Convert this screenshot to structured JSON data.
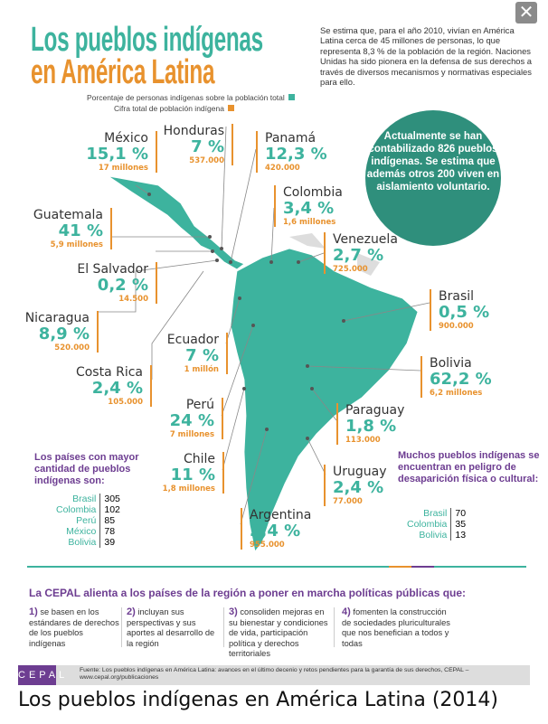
{
  "title": {
    "line1": "Los pueblos indígenas",
    "line2": "en América Latina"
  },
  "intro": "Se estima que, para el año 2010, vivían en América Latina cerca de 45 millones de personas, lo que representa 8,3 % de la población de la región. Naciones Unidas ha sido pionera en la defensa de sus derechos a través de diversos mecanismos y normativas especiales para ello.",
  "legend": {
    "pct": "Porcentaje de personas indígenas sobre la población total",
    "pop": "Cifra total de población indígena"
  },
  "colors": {
    "teal": "#3db39e",
    "orange": "#e8922e",
    "purple": "#6d3d91"
  },
  "bubble": "Actualmente se han contabilizado 826 pueblos indígenas. Se estima que además otros 200 viven en aislamiento voluntario.",
  "countries": {
    "mexico": {
      "name": "México",
      "pct": "15,1 %",
      "pop": "17 millones"
    },
    "honduras": {
      "name": "Honduras",
      "pct": "7 %",
      "pop": "537.000"
    },
    "panama": {
      "name": "Panamá",
      "pct": "12,3 %",
      "pop": "420.000"
    },
    "colombia": {
      "name": "Colombia",
      "pct": "3,4 %",
      "pop": "1,6 millones"
    },
    "venezuela": {
      "name": "Venezuela",
      "pct": "2,7 %",
      "pop": "725.000"
    },
    "guatemala": {
      "name": "Guatemala",
      "pct": "41 %",
      "pop": "5,9 millones"
    },
    "elsalvador": {
      "name": "El Salvador",
      "pct": "0,2 %",
      "pop": "14.500"
    },
    "nicaragua": {
      "name": "Nicaragua",
      "pct": "8,9 %",
      "pop": "520.000"
    },
    "ecuador": {
      "name": "Ecuador",
      "pct": "7 %",
      "pop": "1 millón"
    },
    "costarica": {
      "name": "Costa Rica",
      "pct": "2,4 %",
      "pop": "105.000"
    },
    "peru": {
      "name": "Perú",
      "pct": "24 %",
      "pop": "7 millones"
    },
    "chile": {
      "name": "Chile",
      "pct": "11 %",
      "pop": "1,8 millones"
    },
    "argentina": {
      "name": "Argentina",
      "pct": "2,4 %",
      "pop": "955.000"
    },
    "uruguay": {
      "name": "Uruguay",
      "pct": "2,4 %",
      "pop": "77.000"
    },
    "paraguay": {
      "name": "Paraguay",
      "pct": "1,8 %",
      "pop": "113.000"
    },
    "bolivia": {
      "name": "Bolivia",
      "pct": "62,2 %",
      "pop": "6,2 millones"
    },
    "brasil": {
      "name": "Brasil",
      "pct": "0,5 %",
      "pop": "900.000"
    }
  },
  "most_peoples": {
    "title": "Los países con mayor cantidad de pueblos indígenas son:",
    "rows": [
      [
        "Brasil",
        "305"
      ],
      [
        "Colombia",
        "102"
      ],
      [
        "Perú",
        "85"
      ],
      [
        "México",
        "78"
      ],
      [
        "Bolivia",
        "39"
      ]
    ]
  },
  "danger": {
    "title": "Muchos pueblos indígenas se encuentran en peligro de desaparición física o cultural:",
    "rows": [
      [
        "Brasil",
        "70"
      ],
      [
        "Colombia",
        "35"
      ],
      [
        "Bolivia",
        "13"
      ]
    ]
  },
  "policies": {
    "title": "La CEPAL alienta a los países de la región a poner en marcha políticas públicas que:",
    "items": [
      {
        "num": "1)",
        "text": "se basen en los estándares de derechos de los pueblos indígenas"
      },
      {
        "num": "2)",
        "text": "incluyan sus perspectivas y sus aportes al desarrollo de la región"
      },
      {
        "num": "3)",
        "text": "consoliden mejoras en su bienestar y condiciones de vida, participación política y derechos territoriales"
      },
      {
        "num": "4)",
        "text": "fomenten la construcción de sociedades pluriculturales que nos benefician a todos y todas"
      }
    ]
  },
  "footer": {
    "logo": "CEPAL",
    "source": "Fuente: Los pueblos indígenas en América Latina: avances en el último decenio y retos pendientes para la garantía de sus derechos, CEPAL – www.cepal.org/publicaciones"
  },
  "caption": "Los pueblos indígenas en América Latina (2014)"
}
